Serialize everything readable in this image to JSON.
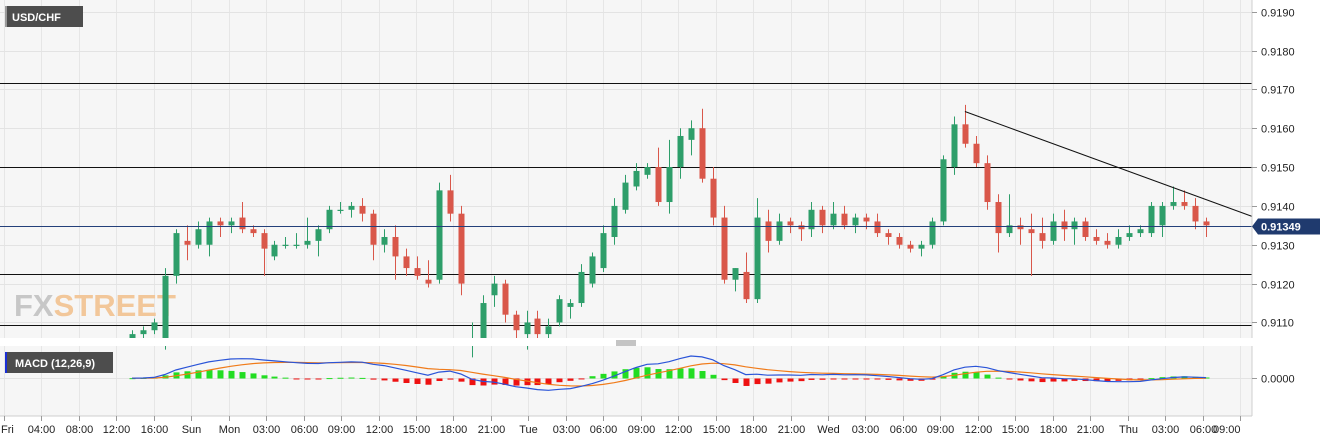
{
  "instrument": "USD/CHF",
  "watermark": {
    "fx": "FX",
    "street": "STREET"
  },
  "indicator_label": "MACD (12,26,9)",
  "current_price_label": "0.91349",
  "colors": {
    "up": "#2e9e6a",
    "down": "#d9574a",
    "hist_pos": "#22dd22",
    "hist_neg": "#ee1111",
    "macd_line": "#2a54d8",
    "signal_line": "#f07b1a",
    "price_badge": "#1f3a6e",
    "current_line": "#24407a"
  },
  "chart_data": [
    {
      "type": "candlestick",
      "title": "USD/CHF",
      "x_labels": [
        "Fri",
        "04:00",
        "08:00",
        "12:00",
        "16:00",
        "Sun",
        "Mon",
        "03:00",
        "06:00",
        "09:00",
        "12:00",
        "15:00",
        "18:00",
        "21:00",
        "Tue",
        "03:00",
        "06:00",
        "09:00",
        "12:00",
        "15:00",
        "18:00",
        "21:00",
        "Wed",
        "03:00",
        "06:00",
        "09:00",
        "12:00",
        "15:00",
        "18:00",
        "21:00",
        "Thu",
        "03:00",
        "06:00",
        "09:00"
      ],
      "y_ticks": [
        "0.9110",
        "0.9120",
        "0.9130",
        "0.9140",
        "0.9150",
        "0.9160",
        "0.9170",
        "0.9180",
        "0.9190"
      ],
      "ylim": [
        0.9106,
        0.9193
      ],
      "grid": true,
      "horizontal_levels": [
        0.91717,
        0.91501,
        0.91225,
        0.91094
      ],
      "current_price": 0.91349,
      "trendline": {
        "from": [
          0.91643,
          "Wed 08:00"
        ],
        "to": [
          0.91373,
          "Thu 09:00"
        ]
      },
      "ohlc": [
        [
          0.9106,
          0.9108,
          0.9104,
          0.9107
        ],
        [
          0.9107,
          0.9109,
          0.9105,
          0.9108
        ],
        [
          0.9108,
          0.9111,
          0.9107,
          0.911
        ],
        [
          0.9106,
          0.9124,
          0.9103,
          0.9122
        ],
        [
          0.9122,
          0.9134,
          0.912,
          0.9133
        ],
        [
          0.9131,
          0.9135,
          0.9126,
          0.913
        ],
        [
          0.913,
          0.9136,
          0.9129,
          0.9134
        ],
        [
          0.913,
          0.9137,
          0.9127,
          0.9136
        ],
        [
          0.9136,
          0.9137,
          0.9132,
          0.9135
        ],
        [
          0.9135,
          0.9137,
          0.9133,
          0.9136
        ],
        [
          0.9137,
          0.9141,
          0.9133,
          0.9134
        ],
        [
          0.9134,
          0.9135,
          0.9132,
          0.9133
        ],
        [
          0.9133,
          0.9134,
          0.9122,
          0.9129
        ],
        [
          0.9127,
          0.9131,
          0.9126,
          0.913
        ],
        [
          0.913,
          0.9132,
          0.9129,
          0.913
        ],
        [
          0.913,
          0.9133,
          0.9129,
          0.913
        ],
        [
          0.913,
          0.9137,
          0.9129,
          0.9131
        ],
        [
          0.9131,
          0.9135,
          0.9127,
          0.9134
        ],
        [
          0.9134,
          0.914,
          0.9133,
          0.9139
        ],
        [
          0.9139,
          0.9141,
          0.9138,
          0.9139
        ],
        [
          0.9139,
          0.9141,
          0.9137,
          0.914
        ],
        [
          0.914,
          0.9142,
          0.9136,
          0.9138
        ],
        [
          0.9138,
          0.9139,
          0.9126,
          0.913
        ],
        [
          0.913,
          0.9134,
          0.9128,
          0.9132
        ],
        [
          0.9132,
          0.9135,
          0.9121,
          0.9127
        ],
        [
          0.9127,
          0.9129,
          0.9122,
          0.9124
        ],
        [
          0.9124,
          0.9127,
          0.9121,
          0.9122
        ],
        [
          0.9121,
          0.9126,
          0.9119,
          0.912
        ],
        [
          0.9121,
          0.9146,
          0.912,
          0.9144
        ],
        [
          0.9144,
          0.9148,
          0.9136,
          0.9138
        ],
        [
          0.9138,
          0.914,
          0.9117,
          0.912
        ],
        [
          0.9106,
          0.911,
          0.9101,
          0.9106
        ],
        [
          0.9106,
          0.9117,
          0.9105,
          0.9115
        ],
        [
          0.9117,
          0.9122,
          0.9114,
          0.912
        ],
        [
          0.912,
          0.9121,
          0.911,
          0.9112
        ],
        [
          0.9112,
          0.9113,
          0.9106,
          0.9108
        ],
        [
          0.9107,
          0.9113,
          0.9103,
          0.911
        ],
        [
          0.9111,
          0.9113,
          0.9106,
          0.9107
        ],
        [
          0.9107,
          0.9111,
          0.9105,
          0.9109
        ],
        [
          0.911,
          0.9117,
          0.9109,
          0.9116
        ],
        [
          0.9114,
          0.9116,
          0.9111,
          0.9115
        ],
        [
          0.9115,
          0.9125,
          0.9114,
          0.9123
        ],
        [
          0.912,
          0.9128,
          0.9119,
          0.9127
        ],
        [
          0.9124,
          0.9135,
          0.9123,
          0.9133
        ],
        [
          0.9132,
          0.9142,
          0.913,
          0.914
        ],
        [
          0.9139,
          0.9148,
          0.9138,
          0.9146
        ],
        [
          0.9145,
          0.9151,
          0.9144,
          0.9149
        ],
        [
          0.9148,
          0.9151,
          0.9147,
          0.915
        ],
        [
          0.915,
          0.9155,
          0.914,
          0.9141
        ],
        [
          0.9141,
          0.9157,
          0.9138,
          0.915
        ],
        [
          0.915,
          0.916,
          0.9147,
          0.9158
        ],
        [
          0.9157,
          0.9162,
          0.9153,
          0.916
        ],
        [
          0.916,
          0.9165,
          0.9146,
          0.9147
        ],
        [
          0.9147,
          0.915,
          0.9135,
          0.9137
        ],
        [
          0.9137,
          0.914,
          0.912,
          0.9121
        ],
        [
          0.9121,
          0.9124,
          0.9118,
          0.9124
        ],
        [
          0.9123,
          0.9128,
          0.9115,
          0.9116
        ],
        [
          0.9116,
          0.9142,
          0.9115,
          0.9137
        ],
        [
          0.9136,
          0.9139,
          0.9128,
          0.9131
        ],
        [
          0.9131,
          0.9138,
          0.913,
          0.9136
        ],
        [
          0.9136,
          0.9137,
          0.9133,
          0.9135
        ],
        [
          0.9135,
          0.9136,
          0.9131,
          0.9134
        ],
        [
          0.9134,
          0.9141,
          0.9132,
          0.9139
        ],
        [
          0.9139,
          0.914,
          0.9133,
          0.9135
        ],
        [
          0.9135,
          0.9141,
          0.9134,
          0.9138
        ],
        [
          0.9138,
          0.914,
          0.9134,
          0.9135
        ],
        [
          0.9135,
          0.9138,
          0.9133,
          0.9137
        ],
        [
          0.9137,
          0.9138,
          0.9134,
          0.9136
        ],
        [
          0.9136,
          0.9138,
          0.9132,
          0.9133
        ],
        [
          0.9133,
          0.9134,
          0.913,
          0.9132
        ],
        [
          0.9132,
          0.9133,
          0.9129,
          0.913
        ],
        [
          0.913,
          0.9131,
          0.9128,
          0.9129
        ],
        [
          0.9129,
          0.9131,
          0.9127,
          0.913
        ],
        [
          0.913,
          0.9137,
          0.9129,
          0.9136
        ],
        [
          0.9136,
          0.9153,
          0.9135,
          0.9152
        ],
        [
          0.915,
          0.9163,
          0.9148,
          0.9161
        ],
        [
          0.9161,
          0.9166,
          0.9155,
          0.9156
        ],
        [
          0.9156,
          0.9158,
          0.915,
          0.9151
        ],
        [
          0.9151,
          0.9153,
          0.9139,
          0.9141
        ],
        [
          0.9141,
          0.9143,
          0.9128,
          0.9133
        ],
        [
          0.9133,
          0.9143,
          0.9132,
          0.9135
        ],
        [
          0.9135,
          0.9137,
          0.913,
          0.9134
        ],
        [
          0.9134,
          0.9138,
          0.9122,
          0.9133
        ],
        [
          0.9133,
          0.9137,
          0.9129,
          0.9131
        ],
        [
          0.9131,
          0.9138,
          0.913,
          0.9136
        ],
        [
          0.9136,
          0.9139,
          0.9131,
          0.9134
        ],
        [
          0.9134,
          0.9137,
          0.913,
          0.9136
        ],
        [
          0.9136,
          0.9137,
          0.9131,
          0.9132
        ],
        [
          0.9132,
          0.9134,
          0.913,
          0.9131
        ],
        [
          0.9131,
          0.9133,
          0.9129,
          0.913
        ],
        [
          0.913,
          0.9134,
          0.9129,
          0.9132
        ],
        [
          0.9132,
          0.9135,
          0.9131,
          0.9133
        ],
        [
          0.9133,
          0.9135,
          0.9132,
          0.9134
        ],
        [
          0.9133,
          0.9141,
          0.9132,
          0.914
        ],
        [
          0.9135,
          0.9141,
          0.9132,
          0.914
        ],
        [
          0.914,
          0.9145,
          0.9139,
          0.9141
        ],
        [
          0.9141,
          0.9144,
          0.9139,
          0.914
        ],
        [
          0.914,
          0.9142,
          0.9134,
          0.9136
        ],
        [
          0.9136,
          0.9137,
          0.9132,
          0.9135
        ]
      ]
    },
    {
      "type": "macd",
      "title": "MACD (12,26,9)",
      "params": [
        12,
        26,
        9
      ],
      "y_ticks": [
        "0.0000"
      ],
      "ylim": [
        -0.0014,
        0.0011
      ],
      "grid": true
    }
  ]
}
